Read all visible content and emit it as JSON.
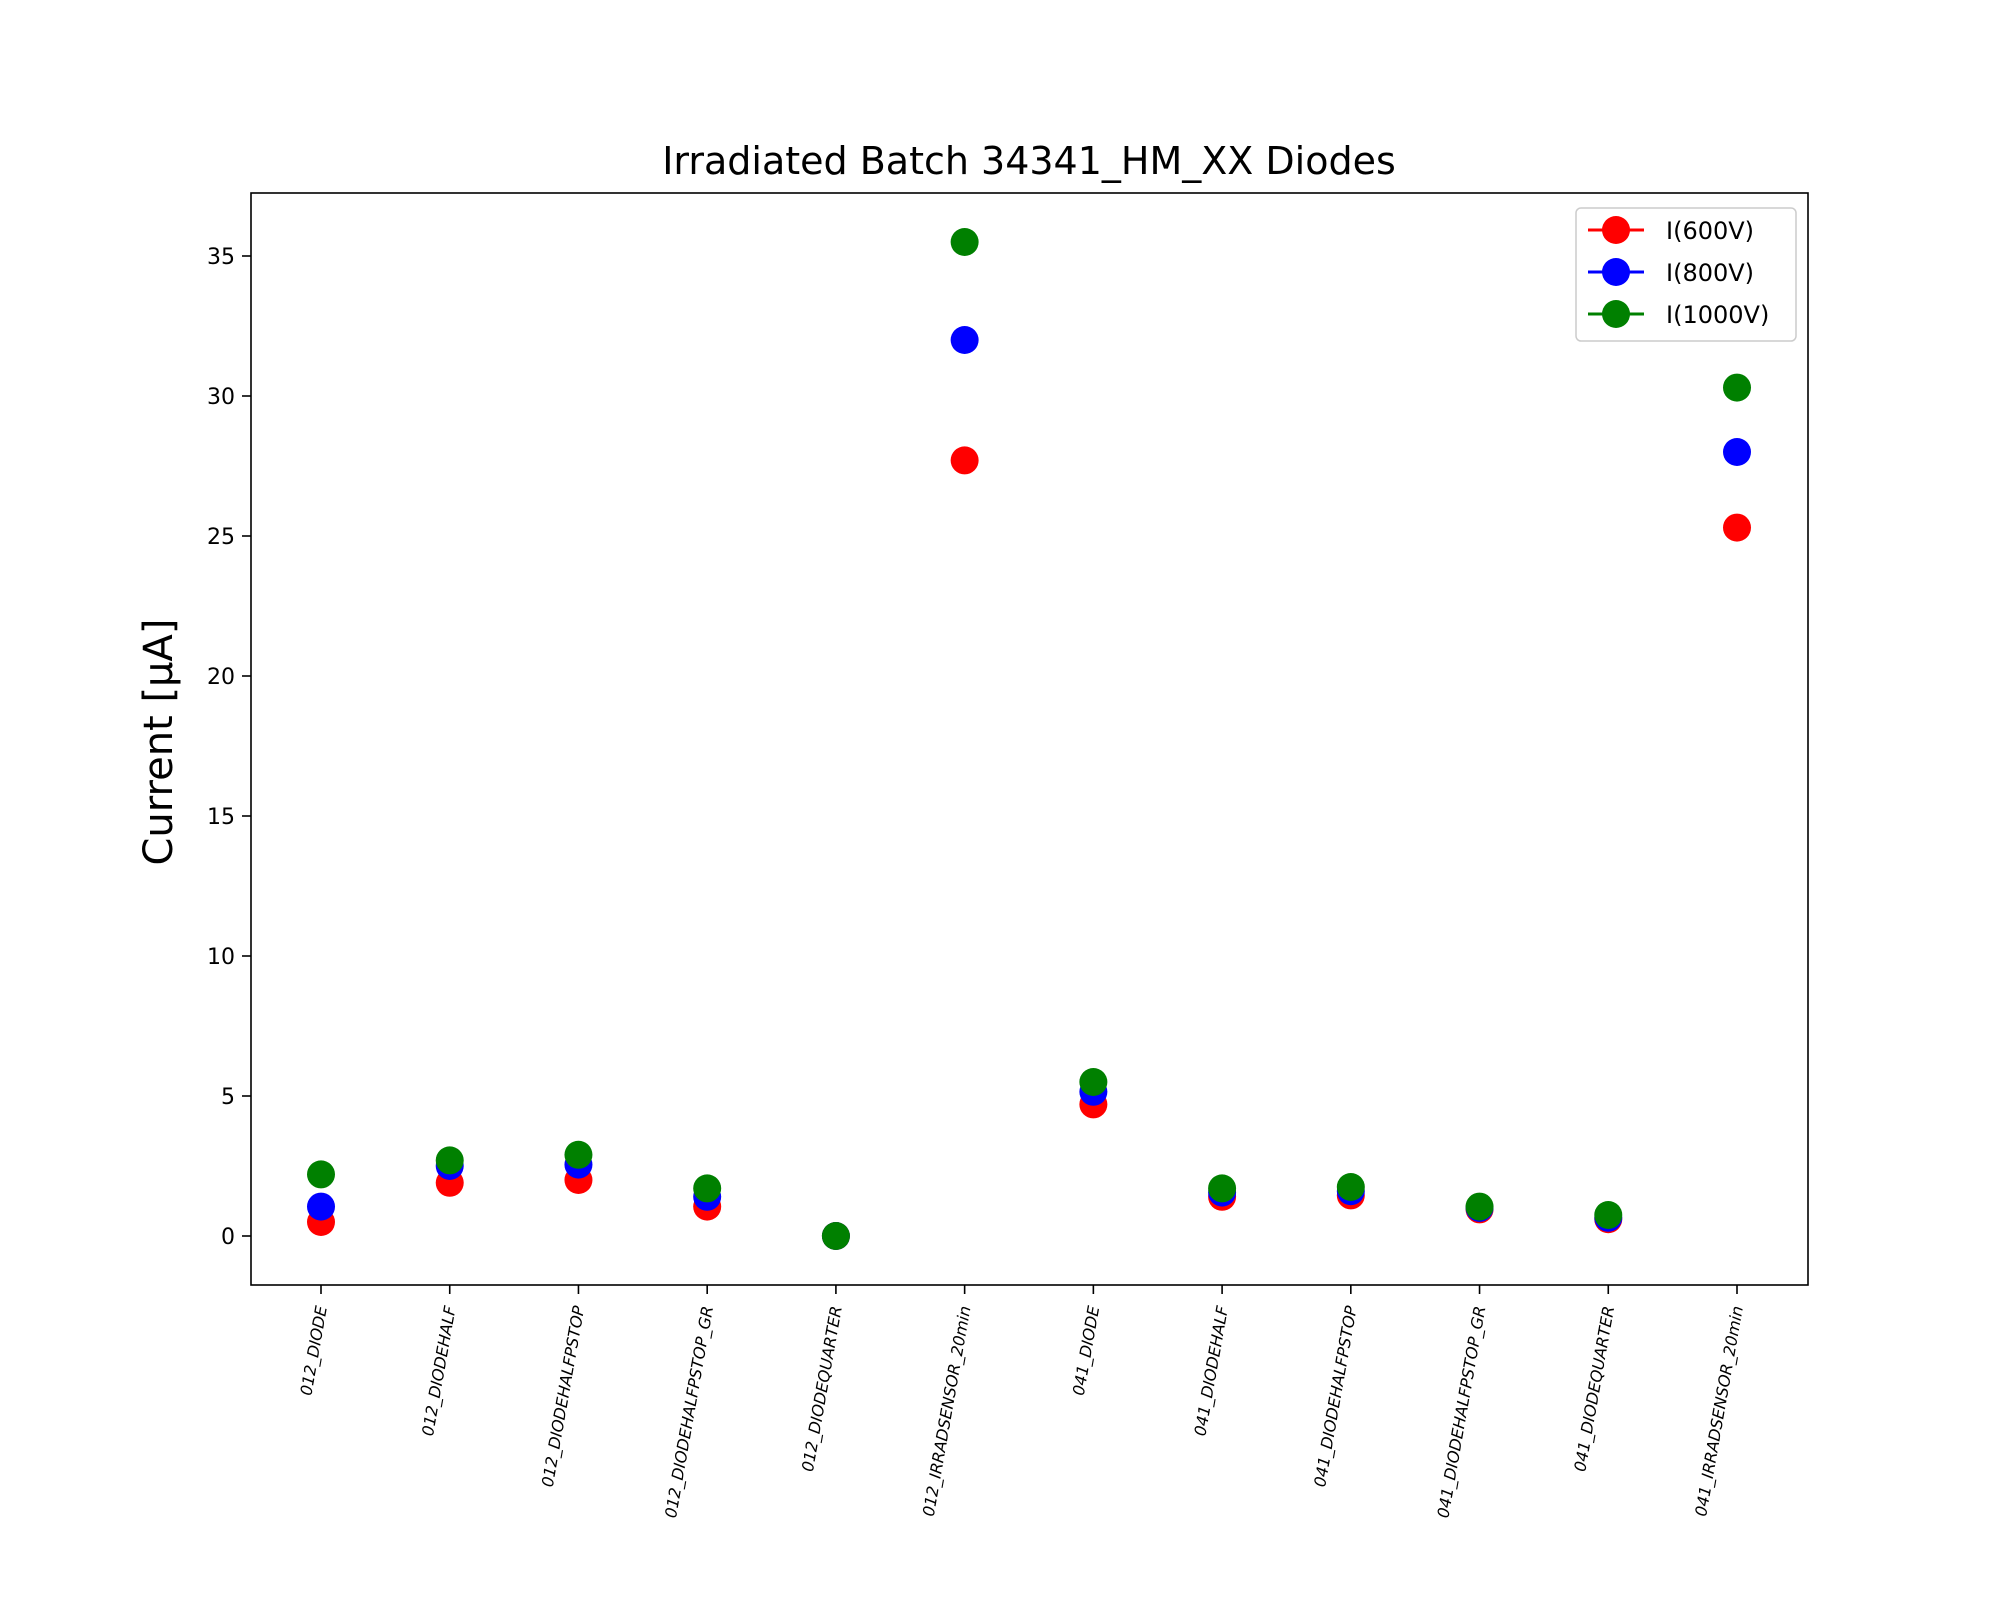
{
  "chart_data": {
    "type": "scatter",
    "title": "Irradiated Batch 34341_HM_XX Diodes",
    "xlabel": "",
    "ylabel": "Current [μA]",
    "ylim": [
      -1.75,
      37.25
    ],
    "yticks": [
      0,
      5,
      10,
      15,
      20,
      25,
      30,
      35
    ],
    "grid": false,
    "legend_position": "top-right",
    "categories": [
      "012_DIODE",
      "012_DIODEHALF",
      "012_DIODEHALFPSTOP",
      "012_DIODEHALFPSTOP_GR",
      "012_DIODEQUARTER",
      "012_IRRADSENSOR_20min",
      "041_DIODE",
      "041_DIODEHALF",
      "041_DIODEHALFPSTOP",
      "041_DIODEHALFPSTOP_GR",
      "041_DIODEQUARTER",
      "041_IRRADSENSOR_20min"
    ],
    "series": [
      {
        "name": "I(600V)",
        "color": "#ff0000",
        "values": [
          0.5,
          1.9,
          2.0,
          1.05,
          0.0,
          27.7,
          4.7,
          1.4,
          1.45,
          0.95,
          0.6,
          25.3
        ]
      },
      {
        "name": "I(800V)",
        "color": "#0000ff",
        "values": [
          1.05,
          2.5,
          2.55,
          1.4,
          0.0,
          32.0,
          5.15,
          1.55,
          1.6,
          1.0,
          0.65,
          28.0
        ]
      },
      {
        "name": "I(1000V)",
        "color": "#008000",
        "values": [
          2.2,
          2.7,
          2.9,
          1.7,
          0.0,
          35.5,
          5.5,
          1.7,
          1.75,
          1.05,
          0.75,
          30.3
        ]
      }
    ]
  }
}
